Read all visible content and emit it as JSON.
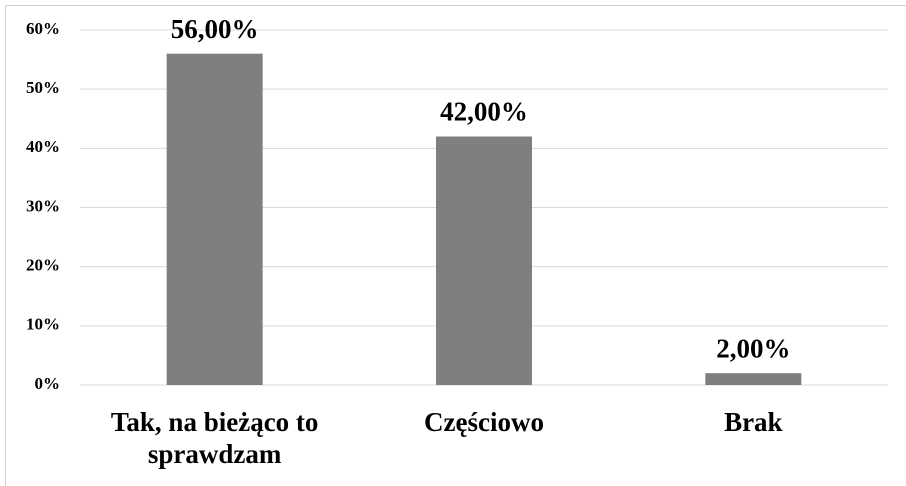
{
  "chart_data": {
    "type": "bar",
    "categories": [
      "Tak, na bieżąco to sprawdzam",
      "Częściowo",
      "Brak"
    ],
    "values": [
      56,
      42,
      2
    ],
    "value_labels": [
      "56,00%",
      "42,00%",
      "2,00%"
    ],
    "color": "#7f7f7f",
    "ylim": [
      0,
      60
    ],
    "yticks": [
      {
        "value": 0,
        "label": "0%"
      },
      {
        "value": 10,
        "label": "10%"
      },
      {
        "value": 20,
        "label": "20%"
      },
      {
        "value": 30,
        "label": "30%"
      },
      {
        "value": 40,
        "label": "40%"
      },
      {
        "value": 50,
        "label": "50%"
      },
      {
        "value": 60,
        "label": "60%"
      }
    ],
    "grid": true
  }
}
